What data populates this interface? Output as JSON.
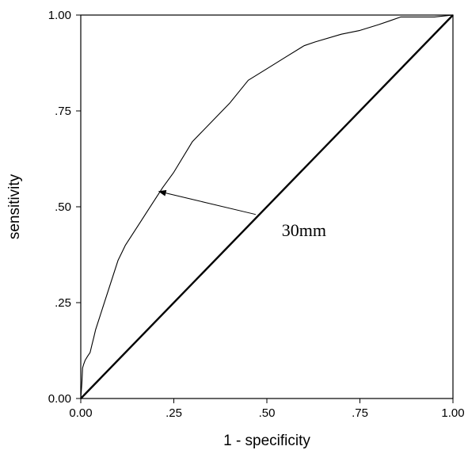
{
  "chart_data": {
    "type": "line",
    "title": "",
    "xlabel": "1 - specificity",
    "ylabel": "sensitivity",
    "xlim": [
      0,
      1
    ],
    "ylim": [
      0,
      1
    ],
    "grid": false,
    "x_ticks": [
      {
        "value": 0,
        "label": "0.00"
      },
      {
        "value": 0.25,
        "label": ".25"
      },
      {
        "value": 0.5,
        "label": ".50"
      },
      {
        "value": 0.75,
        "label": ".75"
      },
      {
        "value": 1,
        "label": "1.00"
      }
    ],
    "y_ticks": [
      {
        "value": 0,
        "label": "0.00"
      },
      {
        "value": 0.25,
        "label": ".25"
      },
      {
        "value": 0.5,
        "label": ".50"
      },
      {
        "value": 0.75,
        "label": ".75"
      },
      {
        "value": 1,
        "label": "1.00"
      }
    ],
    "series": [
      {
        "x": [
          0,
          0.003,
          0.005,
          0.008,
          0.012,
          0.018,
          0.025,
          0.03,
          0.035,
          0.04,
          0.05,
          0.06,
          0.07,
          0.08,
          0.09,
          0.1,
          0.11,
          0.12,
          0.14,
          0.16,
          0.18,
          0.2,
          0.22,
          0.25,
          0.3,
          0.35,
          0.4,
          0.45,
          0.5,
          0.55,
          0.6,
          0.63,
          0.7,
          0.75,
          0.8,
          0.83,
          0.86,
          0.9,
          0.95,
          1.0
        ],
        "y": [
          0,
          0.04,
          0.08,
          0.09,
          0.1,
          0.11,
          0.12,
          0.14,
          0.16,
          0.18,
          0.21,
          0.24,
          0.27,
          0.3,
          0.33,
          0.36,
          0.38,
          0.4,
          0.43,
          0.46,
          0.49,
          0.52,
          0.55,
          0.59,
          0.67,
          0.72,
          0.77,
          0.83,
          0.86,
          0.89,
          0.92,
          0.93,
          0.95,
          0.96,
          0.975,
          0.985,
          0.995,
          0.995,
          0.995,
          1.0
        ],
        "color": "#000000"
      },
      {
        "x": [
          0,
          1
        ],
        "y": [
          0,
          1
        ],
        "color": "#000000"
      }
    ],
    "annotations": [
      {
        "text": "30mm",
        "x": 0.54,
        "y": 0.44,
        "arrow_from": [
          0.47,
          0.48
        ],
        "arrow_to": [
          0.21,
          0.54
        ]
      }
    ]
  }
}
